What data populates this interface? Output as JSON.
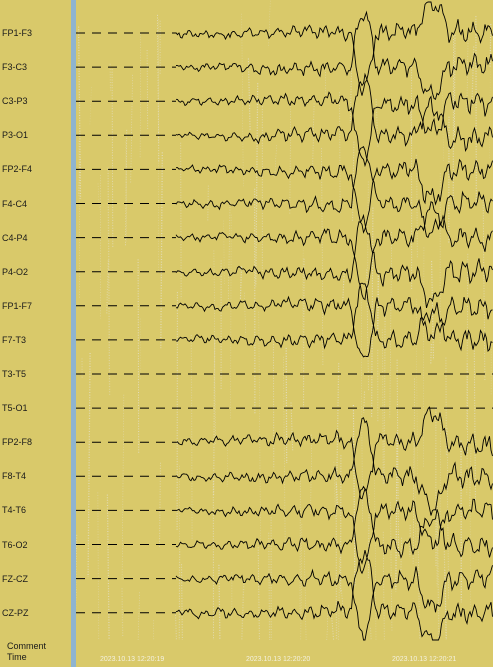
{
  "channels": [
    {
      "label": "FP1-F3"
    },
    {
      "label": "F3-C3"
    },
    {
      "label": "C3-P3"
    },
    {
      "label": "P3-O1"
    },
    {
      "label": "FP2-F4"
    },
    {
      "label": "F4-C4"
    },
    {
      "label": "C4-P4"
    },
    {
      "label": "P4-O2"
    },
    {
      "label": "FP1-F7"
    },
    {
      "label": "F7-T3"
    },
    {
      "label": "T3-T5"
    },
    {
      "label": "T5-O1"
    },
    {
      "label": "FP2-F8"
    },
    {
      "label": "F8-T4"
    },
    {
      "label": "T4-T6"
    },
    {
      "label": "T6-O2"
    },
    {
      "label": "FZ-CZ"
    },
    {
      "label": "CZ-PZ"
    }
  ],
  "footer": {
    "comment_label": "Comment",
    "time_label": "Time"
  },
  "timestamps": [
    "2023.10.13 12:20:19",
    "2023.10.13 12:20:20",
    "2023.10.13 12:20:21"
  ],
  "colors": {
    "background": "#d9c96a",
    "separator": "#8fb4cf",
    "trace": "#000000",
    "noise": "#e7e4d6"
  }
}
